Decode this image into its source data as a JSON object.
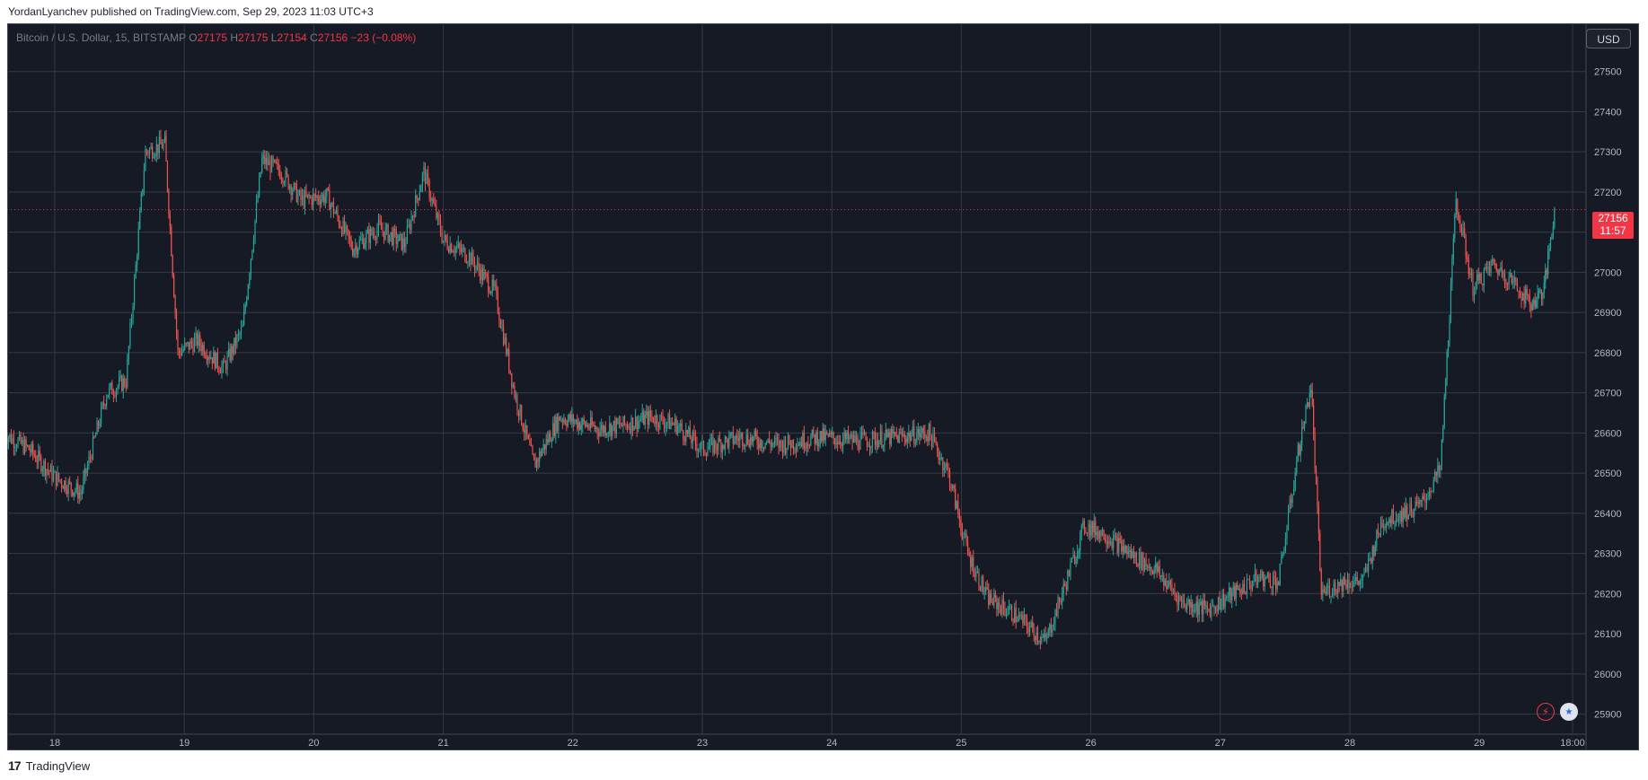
{
  "header": {
    "publish_text": "YordanLyanchev published on TradingView.com, Sep 29, 2023 11:03 UTC+3"
  },
  "legend": {
    "symbol": "Bitcoin / U.S. Dollar, 15, BITSTAMP",
    "o_label": "O",
    "o_value": "27175",
    "h_label": "H",
    "h_value": "27175",
    "l_label": "L",
    "l_value": "27154",
    "c_label": "C",
    "c_value": "27156",
    "change": "−23 (−0.08%)"
  },
  "currency_button": "USD",
  "price_badge": {
    "price": "27156",
    "countdown": "11:57"
  },
  "footer": {
    "logo": "17",
    "brand": "TradingView"
  },
  "icons": [
    "flash-icon",
    "us-flag-icon"
  ],
  "colors": {
    "up": "#26a69a",
    "down": "#ef5350",
    "background": "#161a25",
    "grid": "#363a45",
    "last_price": "#f23645"
  },
  "chart_data": {
    "type": "candlestick",
    "symbol": "Bitcoin / U.S. Dollar",
    "interval": "15",
    "exchange": "BITSTAMP",
    "ylim": [
      25850,
      27620
    ],
    "y_ticks": [
      25900,
      26000,
      26100,
      26200,
      26300,
      26400,
      26500,
      26600,
      26700,
      26800,
      26900,
      27000,
      27100,
      27200,
      27300,
      27400,
      27500
    ],
    "x_ticks": [
      "18",
      "19",
      "20",
      "21",
      "22",
      "23",
      "24",
      "25",
      "26",
      "27",
      "28",
      "29",
      "18:00"
    ],
    "last_price": 27156,
    "grid": true,
    "price_path": [
      [
        "17.6",
        26600
      ],
      [
        "17.8",
        26560
      ],
      [
        "18.0",
        26490
      ],
      [
        "18.2",
        26450
      ],
      [
        "18.4",
        26700
      ],
      [
        "18.55",
        26730
      ],
      [
        "18.7",
        27300
      ],
      [
        "18.85",
        27320
      ],
      [
        "18.95",
        26800
      ],
      [
        "19.1",
        26830
      ],
      [
        "19.3",
        26760
      ],
      [
        "19.45",
        26860
      ],
      [
        "19.6",
        27280
      ],
      [
        "19.75",
        27250
      ],
      [
        "19.9",
        27180
      ],
      [
        "20.1",
        27190
      ],
      [
        "20.3",
        27060
      ],
      [
        "20.5",
        27110
      ],
      [
        "20.7",
        27070
      ],
      [
        "20.85",
        27250
      ],
      [
        "21.0",
        27080
      ],
      [
        "21.2",
        27040
      ],
      [
        "21.4",
        26950
      ],
      [
        "21.55",
        26700
      ],
      [
        "21.7",
        26520
      ],
      [
        "21.9",
        26640
      ],
      [
        "22.2",
        26610
      ],
      [
        "22.4",
        26620
      ],
      [
        "22.6",
        26640
      ],
      [
        "22.8",
        26620
      ],
      [
        "23.0",
        26560
      ],
      [
        "23.3",
        26590
      ],
      [
        "23.6",
        26570
      ],
      [
        "23.9",
        26590
      ],
      [
        "24.2",
        26580
      ],
      [
        "24.5",
        26590
      ],
      [
        "24.75",
        26600
      ],
      [
        "24.9",
        26500
      ],
      [
        "25.05",
        26300
      ],
      [
        "25.2",
        26190
      ],
      [
        "25.4",
        26150
      ],
      [
        "25.55",
        26110
      ],
      [
        "25.65",
        26080
      ],
      [
        "25.8",
        26220
      ],
      [
        "25.95",
        26370
      ],
      [
        "26.1",
        26350
      ],
      [
        "26.3",
        26300
      ],
      [
        "26.5",
        26260
      ],
      [
        "26.7",
        26180
      ],
      [
        "26.9",
        26160
      ],
      [
        "27.1",
        26200
      ],
      [
        "27.3",
        26240
      ],
      [
        "27.45",
        26230
      ],
      [
        "27.6",
        26550
      ],
      [
        "27.7",
        26720
      ],
      [
        "27.78",
        26200
      ],
      [
        "27.95",
        26230
      ],
      [
        "28.1",
        26230
      ],
      [
        "28.25",
        26380
      ],
      [
        "28.4",
        26400
      ],
      [
        "28.55",
        26420
      ],
      [
        "28.7",
        26510
      ],
      [
        "28.82",
        27180
      ],
      [
        "28.95",
        26960
      ],
      [
        "29.1",
        27020
      ],
      [
        "29.25",
        26980
      ],
      [
        "29.4",
        26920
      ],
      [
        "29.5",
        26960
      ],
      [
        "29.58",
        27156
      ]
    ]
  }
}
